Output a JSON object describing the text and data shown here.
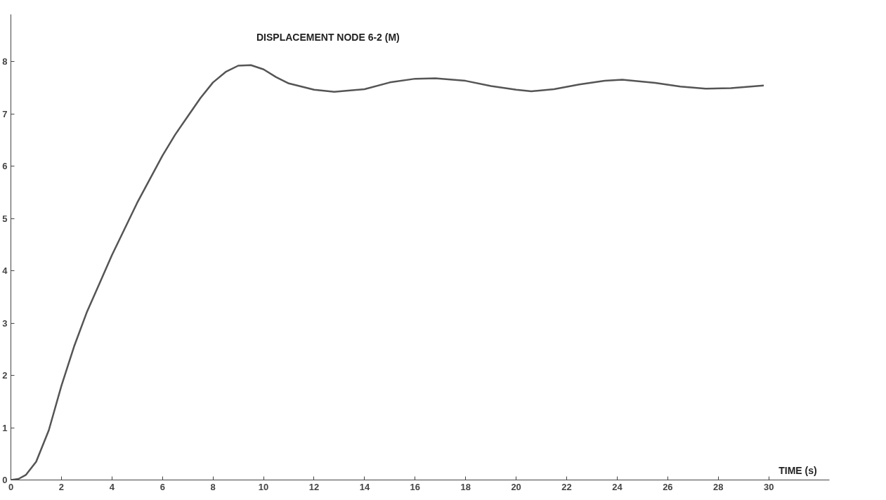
{
  "chart_data": {
    "type": "line",
    "title": "DISPLACEMENT NODE 6-2 (M)",
    "xlabel": "TIME (s)",
    "x": [
      0,
      0.3,
      0.6,
      1,
      1.5,
      2,
      2.5,
      3,
      3.5,
      4,
      4.5,
      5,
      5.5,
      6,
      6.5,
      7,
      7.5,
      8,
      8.5,
      9,
      9.5,
      10,
      10.5,
      11,
      12,
      12.8,
      14,
      15,
      16,
      16.8,
      18,
      19,
      20,
      20.6,
      21.5,
      22.5,
      23.5,
      24.2,
      25.5,
      26.5,
      27.5,
      28.5,
      29.8
    ],
    "series": [
      {
        "color": "#555555",
        "values": [
          0,
          0.02,
          0.1,
          0.35,
          0.95,
          1.8,
          2.55,
          3.2,
          3.75,
          4.3,
          4.8,
          5.3,
          5.75,
          6.2,
          6.6,
          6.95,
          7.3,
          7.6,
          7.8,
          7.92,
          7.93,
          7.85,
          7.7,
          7.58,
          7.46,
          7.42,
          7.47,
          7.6,
          7.67,
          7.68,
          7.63,
          7.53,
          7.46,
          7.43,
          7.47,
          7.56,
          7.63,
          7.65,
          7.59,
          7.52,
          7.48,
          7.49,
          7.54
        ]
      }
    ],
    "xlim": [
      0,
      32.4
    ],
    "ylim": [
      0,
      8.9
    ],
    "xticks": [
      0,
      2,
      4,
      6,
      8,
      10,
      12,
      14,
      16,
      18,
      20,
      22,
      24,
      26,
      28,
      30
    ],
    "yticks": [
      0,
      1,
      2,
      3,
      4,
      5,
      6,
      7,
      8
    ],
    "grid": false,
    "marker": "none",
    "line_style": "solid"
  }
}
